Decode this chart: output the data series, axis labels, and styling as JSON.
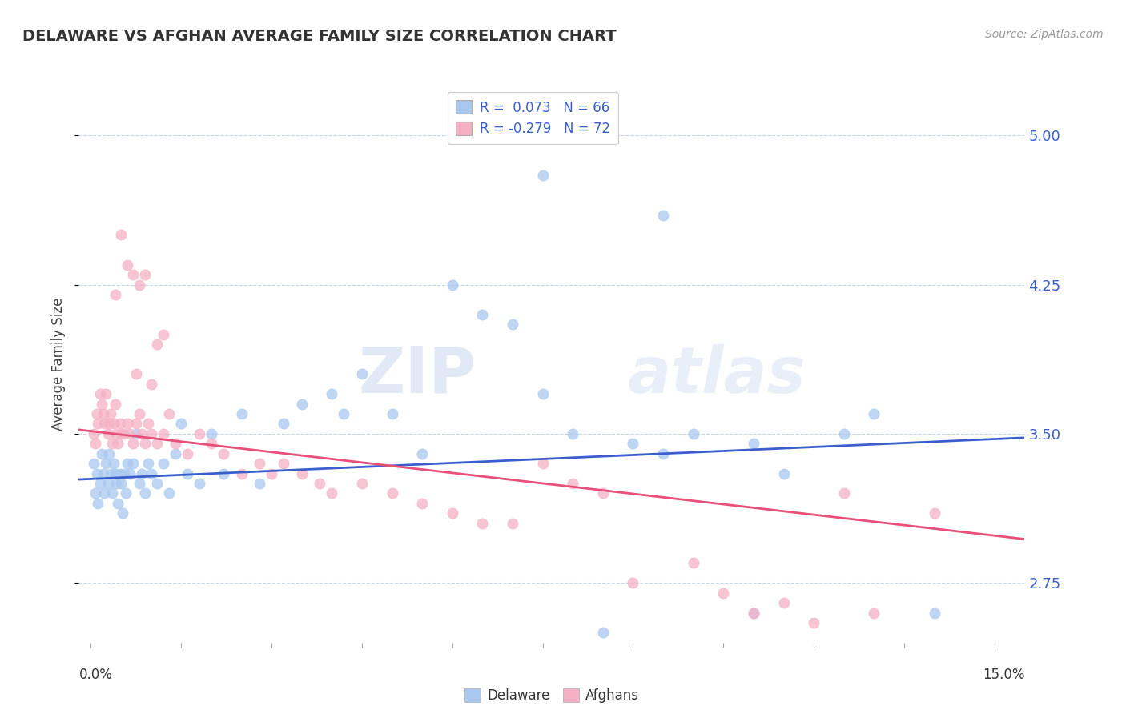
{
  "title": "DELAWARE VS AFGHAN AVERAGE FAMILY SIZE CORRELATION CHART",
  "source": "Source: ZipAtlas.com",
  "ylabel": "Average Family Size",
  "ylim": [
    2.45,
    5.25
  ],
  "xlim": [
    -0.2,
    15.5
  ],
  "yticks": [
    2.75,
    3.5,
    4.25,
    5.0
  ],
  "delaware_color": "#a8c8f0",
  "afghan_color": "#f5b0c5",
  "delaware_line_color": "#3a5fcd",
  "afghan_line_color": "#e8507a",
  "R_delaware": 0.073,
  "N_delaware": 66,
  "R_afghan": -0.279,
  "N_afghan": 72,
  "legend_label_delaware": "Delaware",
  "legend_label_afghan": "Afghans",
  "watermark_zip": "ZIP",
  "watermark_atlas": "atlas",
  "background_color": "#ffffff",
  "grid_color": "#c8d4e8",
  "delaware_line_x0": 0.0,
  "delaware_line_y0": 3.27,
  "delaware_line_x1": 15.0,
  "delaware_line_y1": 3.48,
  "afghan_line_x0": 0.0,
  "afghan_line_y0": 3.52,
  "afghan_line_x1": 15.0,
  "afghan_line_y1": 2.97,
  "delaware_x": [
    0.05,
    0.08,
    0.1,
    0.12,
    0.15,
    0.18,
    0.2,
    0.22,
    0.25,
    0.28,
    0.3,
    0.32,
    0.35,
    0.38,
    0.4,
    0.42,
    0.45,
    0.48,
    0.5,
    0.52,
    0.55,
    0.58,
    0.6,
    0.65,
    0.7,
    0.75,
    0.8,
    0.85,
    0.9,
    0.95,
    1.0,
    1.1,
    1.2,
    1.3,
    1.4,
    1.5,
    1.6,
    1.8,
    2.0,
    2.2,
    2.5,
    2.8,
    3.2,
    3.5,
    4.0,
    4.2,
    4.5,
    5.0,
    5.5,
    6.0,
    6.5,
    7.0,
    7.5,
    8.0,
    9.0,
    9.5,
    10.0,
    11.0,
    11.5,
    12.5,
    13.0,
    14.0,
    7.5,
    9.5,
    8.5,
    11.0
  ],
  "delaware_y": [
    3.35,
    3.2,
    3.3,
    3.15,
    3.25,
    3.4,
    3.3,
    3.2,
    3.35,
    3.25,
    3.4,
    3.3,
    3.2,
    3.35,
    3.3,
    3.25,
    3.15,
    3.3,
    3.25,
    3.1,
    3.3,
    3.2,
    3.35,
    3.3,
    3.35,
    3.5,
    3.25,
    3.3,
    3.2,
    3.35,
    3.3,
    3.25,
    3.35,
    3.2,
    3.4,
    3.55,
    3.3,
    3.25,
    3.5,
    3.3,
    3.6,
    3.25,
    3.55,
    3.65,
    3.7,
    3.6,
    3.8,
    3.6,
    3.4,
    4.25,
    4.1,
    4.05,
    3.7,
    3.5,
    3.45,
    3.4,
    3.5,
    3.45,
    3.3,
    3.5,
    3.6,
    2.6,
    4.8,
    4.6,
    2.5,
    2.6
  ],
  "afghan_x": [
    0.05,
    0.08,
    0.1,
    0.12,
    0.15,
    0.18,
    0.2,
    0.22,
    0.25,
    0.28,
    0.3,
    0.32,
    0.35,
    0.38,
    0.4,
    0.42,
    0.45,
    0.48,
    0.5,
    0.55,
    0.6,
    0.65,
    0.7,
    0.75,
    0.8,
    0.85,
    0.9,
    0.95,
    1.0,
    1.1,
    1.2,
    1.4,
    1.6,
    1.8,
    2.0,
    2.2,
    2.5,
    2.8,
    3.0,
    3.2,
    3.5,
    3.8,
    4.0,
    4.5,
    5.0,
    5.5,
    6.0,
    6.5,
    7.0,
    7.5,
    8.0,
    8.5,
    9.0,
    10.0,
    10.5,
    11.0,
    11.5,
    12.0,
    12.5,
    13.0,
    14.0,
    0.4,
    0.5,
    0.6,
    0.7,
    0.75,
    0.8,
    0.9,
    1.0,
    1.1,
    1.2,
    1.3
  ],
  "afghan_y": [
    3.5,
    3.45,
    3.6,
    3.55,
    3.7,
    3.65,
    3.6,
    3.55,
    3.7,
    3.5,
    3.55,
    3.6,
    3.45,
    3.55,
    3.65,
    3.5,
    3.45,
    3.55,
    3.5,
    3.5,
    3.55,
    3.5,
    3.45,
    3.55,
    3.6,
    3.5,
    3.45,
    3.55,
    3.5,
    3.45,
    3.5,
    3.45,
    3.4,
    3.5,
    3.45,
    3.4,
    3.3,
    3.35,
    3.3,
    3.35,
    3.3,
    3.25,
    3.2,
    3.25,
    3.2,
    3.15,
    3.1,
    3.05,
    3.05,
    3.35,
    3.25,
    3.2,
    2.75,
    2.85,
    2.7,
    2.6,
    2.65,
    2.55,
    3.2,
    2.6,
    3.1,
    4.2,
    4.5,
    4.35,
    4.3,
    3.8,
    4.25,
    4.3,
    3.75,
    3.95,
    4.0,
    3.6
  ]
}
